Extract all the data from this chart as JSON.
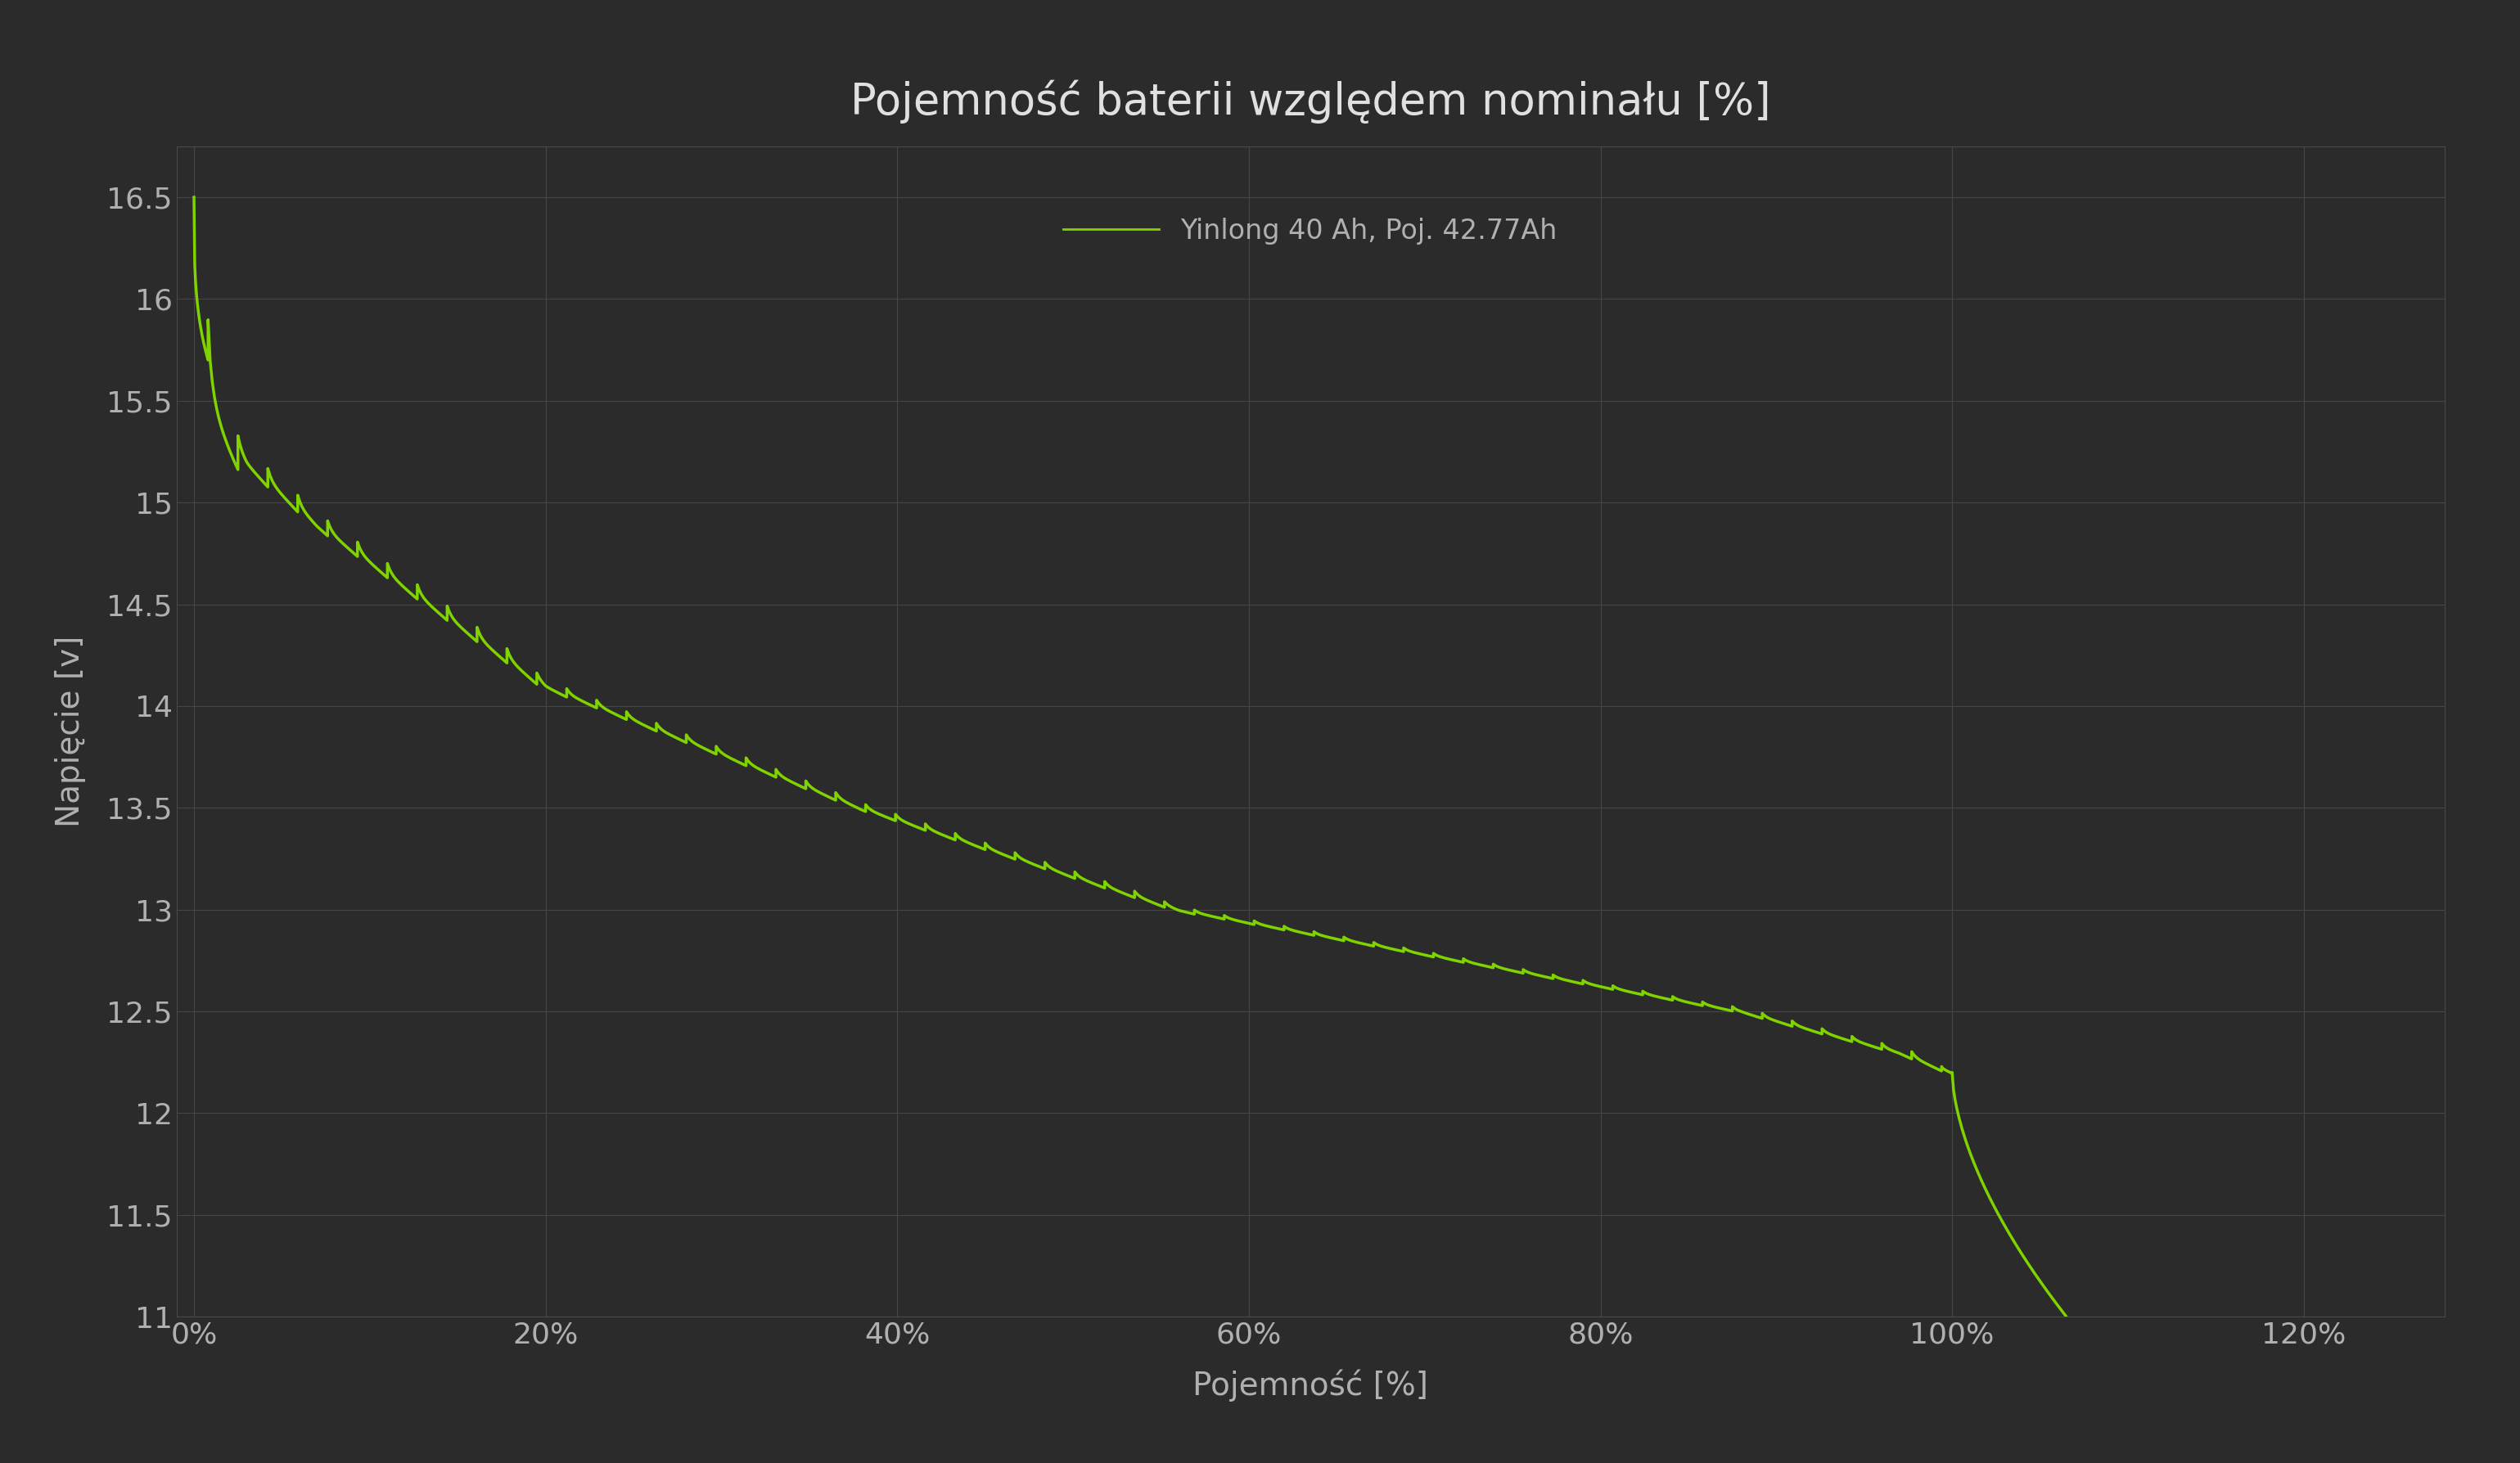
{
  "title": "Pojemność baterii względem nominału [%]",
  "xlabel": "Pojemność [%]",
  "ylabel": "Napięcie [v]",
  "legend_label": "Yinlong 40 Ah, Poj. 42.77Ah",
  "line_color": "#7FD400",
  "background_color": "#2b2b2b",
  "axes_facecolor": "#2b2b2b",
  "grid_color": "#4a4a4a",
  "text_color": "#b0b0b0",
  "title_color": "#e0e0e0",
  "xlim": [
    -0.01,
    1.28
  ],
  "ylim": [
    11.0,
    16.75
  ],
  "xticks": [
    0.0,
    0.2,
    0.4,
    0.6,
    0.8,
    1.0,
    1.2
  ],
  "xtick_labels": [
    "0%",
    "20%",
    "40%",
    "60%",
    "80%",
    "100%",
    "120%"
  ],
  "yticks": [
    11.0,
    11.5,
    12.0,
    12.5,
    13.0,
    13.5,
    14.0,
    14.5,
    15.0,
    15.5,
    16.0,
    16.5
  ],
  "line_width": 2.5,
  "title_fontsize": 38,
  "label_fontsize": 28,
  "tick_fontsize": 26,
  "legend_fontsize": 24
}
